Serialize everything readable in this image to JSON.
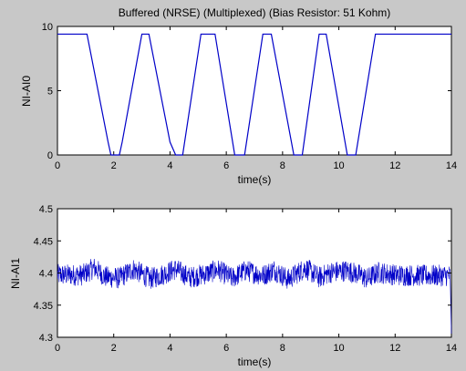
{
  "figure": {
    "background": "#c8c8c8",
    "axes_bg": "#ffffff",
    "line_color": "#0000c8"
  },
  "chart_data": [
    {
      "type": "line",
      "title": "Buffered (NRSE) (Multiplexed) (Bias Resistor: 51 Kohm)",
      "xlabel": "time(s)",
      "ylabel": "NI-AI0",
      "xlim": [
        0,
        14
      ],
      "ylim": [
        0,
        10
      ],
      "xticks": [
        0,
        2,
        4,
        6,
        8,
        10,
        12,
        14
      ],
      "yticks": [
        0,
        5,
        10
      ],
      "grid": false,
      "series": [
        {
          "x": [
            0,
            1.05,
            1.8,
            1.9,
            2.2,
            2.3,
            3.0,
            3.25,
            4.0,
            4.2,
            4.45,
            5.1,
            5.6,
            6.3,
            6.65,
            7.3,
            7.6,
            8.4,
            8.7,
            9.3,
            9.55,
            10.3,
            10.6,
            11.3,
            14
          ],
          "y": [
            9.4,
            9.4,
            1.0,
            0,
            0,
            1.0,
            9.4,
            9.4,
            1.0,
            0,
            0,
            9.4,
            9.4,
            0,
            0,
            9.4,
            9.4,
            0,
            0,
            9.4,
            9.4,
            0,
            0,
            9.4,
            9.4
          ]
        }
      ]
    },
    {
      "type": "line",
      "title": "",
      "xlabel": "time(s)",
      "ylabel": "NI-AI1",
      "xlim": [
        0,
        14
      ],
      "ylim": [
        4.3,
        4.5
      ],
      "xticks": [
        0,
        2,
        4,
        6,
        8,
        10,
        12,
        14
      ],
      "yticks": [
        4.3,
        4.35,
        4.4,
        4.45,
        4.5
      ],
      "grid": false,
      "series": [
        {
          "x": [
            0,
            0.9,
            1.3,
            1.7,
            2.2,
            2.7,
            3.3,
            3.7,
            4.2,
            4.7,
            5.3,
            5.7,
            6.2,
            6.7,
            7.3,
            7.7,
            8.2,
            8.8,
            9.3,
            9.7,
            10.3,
            10.8,
            11.0,
            11.4,
            12.0,
            13.0,
            13.95,
            14.0
          ],
          "y": [
            4.397,
            4.397,
            4.408,
            4.394,
            4.392,
            4.406,
            4.391,
            4.397,
            4.406,
            4.393,
            4.399,
            4.405,
            4.392,
            4.404,
            4.396,
            4.405,
            4.39,
            4.408,
            4.393,
            4.401,
            4.404,
            4.396,
            4.391,
            4.401,
            4.397,
            4.396,
            4.396,
            4.305
          ],
          "noise_band": 0.017
        }
      ]
    }
  ]
}
